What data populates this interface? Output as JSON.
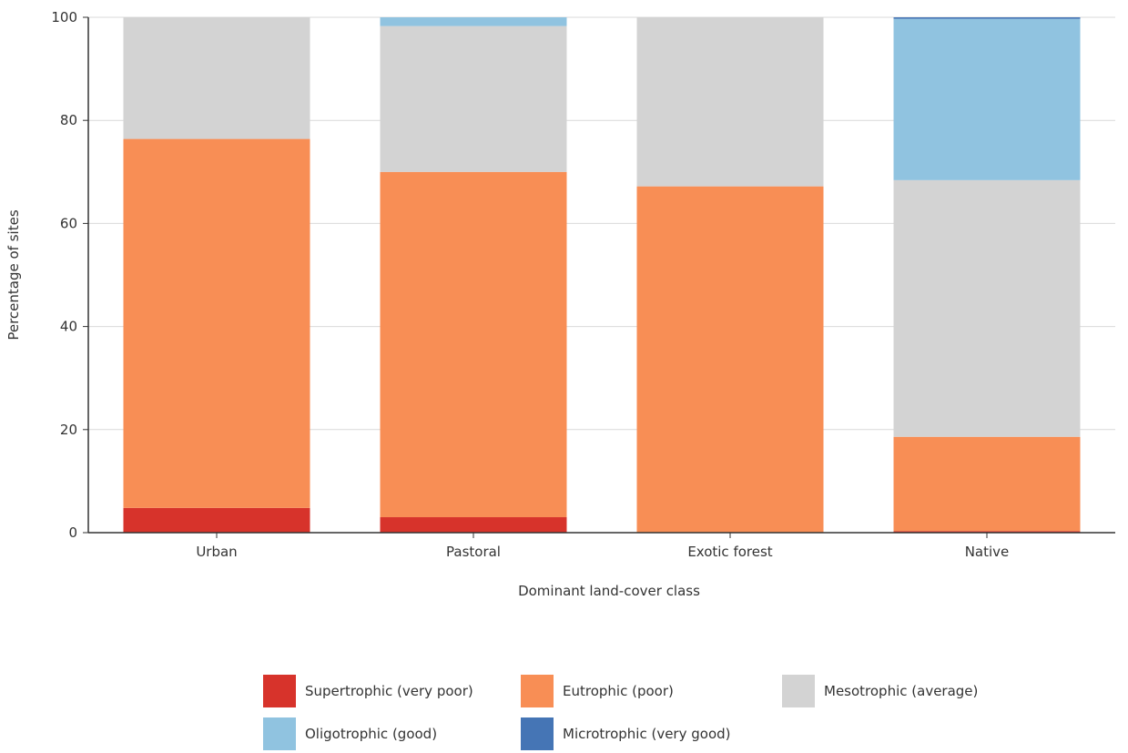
{
  "chart_data": {
    "type": "bar",
    "stacked": true,
    "xlabel": "Dominant land-cover class",
    "ylabel": "Percentage of sites",
    "ylim": [
      0,
      100
    ],
    "yticks": [
      0,
      20,
      40,
      60,
      80,
      100
    ],
    "grid": true,
    "legend_position": "bottom",
    "categories": [
      "Urban",
      "Pastoral",
      "Exotic forest",
      "Native"
    ],
    "series": [
      {
        "name": "Supertrophic (very poor)",
        "color": "#d7332b",
        "values": [
          4.8,
          3.0,
          0.0,
          0.3
        ]
      },
      {
        "name": "Eutrophic (poor)",
        "color": "#f88e55",
        "values": [
          71.6,
          67.0,
          67.2,
          18.3
        ]
      },
      {
        "name": "Mesotrophic (average)",
        "color": "#d3d3d3",
        "values": [
          23.6,
          28.3,
          32.8,
          49.8
        ]
      },
      {
        "name": "Oligotrophic (good)",
        "color": "#90c3e0",
        "values": [
          0.0,
          1.7,
          0.0,
          31.3
        ]
      },
      {
        "name": "Microtrophic (very good)",
        "color": "#4575b5",
        "values": [
          0.0,
          0.0,
          0.0,
          0.3
        ]
      }
    ]
  }
}
